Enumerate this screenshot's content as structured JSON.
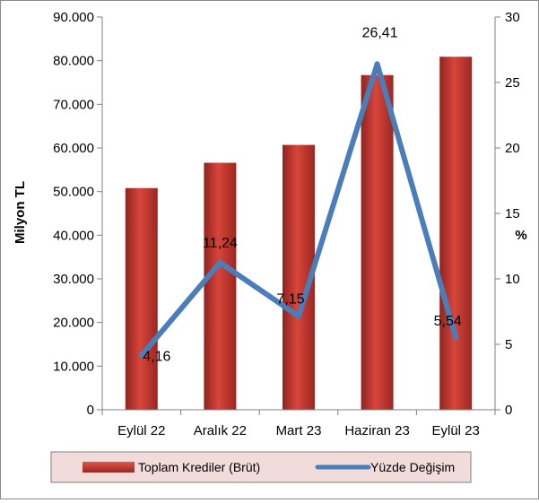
{
  "chart_data": {
    "type": "bar",
    "categories": [
      "Eylül 22",
      "Aralık 22",
      "Mart 23",
      "Haziran 23",
      "Eylül 23"
    ],
    "series": [
      {
        "name": "Toplam Krediler (Brüt)",
        "type": "bar",
        "axis": "left",
        "color": "#c0392b",
        "values": [
          50800,
          56600,
          60700,
          76700,
          80900
        ]
      },
      {
        "name": "Yüzde Değişim",
        "type": "line",
        "axis": "right",
        "color": "#4a7ebb",
        "values": [
          4.16,
          11.24,
          7.15,
          26.41,
          5.54
        ],
        "data_labels": [
          "4,16",
          "11,24",
          "7,15",
          "26,41",
          "5,54"
        ]
      }
    ],
    "ylabel": "Milyon TL",
    "y2label": "%",
    "ylim": [
      0,
      90000
    ],
    "y2lim": [
      0,
      30
    ],
    "yticks": [
      "0",
      "10.000",
      "20.000",
      "30.000",
      "40.000",
      "50.000",
      "60.000",
      "70.000",
      "80.000",
      "90.000"
    ],
    "y2ticks": [
      "0",
      "5",
      "10",
      "15",
      "20",
      "25",
      "30"
    ],
    "grid": false,
    "legend": "bottom"
  }
}
